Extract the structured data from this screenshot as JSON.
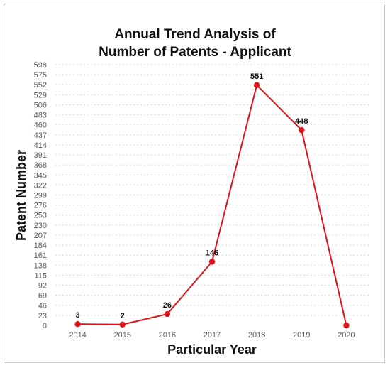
{
  "chart_data": {
    "type": "line",
    "title_line1": "Annual Trend Analysis of",
    "title_line2": "Number of Patents - Applicant",
    "xlabel": "Particular Year",
    "ylabel": "Patent Number",
    "categories": [
      "2014",
      "2015",
      "2016",
      "2017",
      "2018",
      "2019",
      "2020"
    ],
    "series": [
      {
        "values": [
          3,
          2,
          26,
          146,
          551,
          448,
          0
        ],
        "data_labels": [
          "3",
          "2",
          "26",
          "146",
          "551",
          "448",
          ""
        ]
      }
    ],
    "y_ticks": [
      0,
      23,
      46,
      69,
      92,
      115,
      138,
      161,
      184,
      207,
      230,
      253,
      276,
      299,
      322,
      345,
      368,
      391,
      414,
      437,
      460,
      483,
      506,
      529,
      552,
      575,
      598
    ],
    "ylim": [
      0,
      598
    ],
    "grid": true,
    "line_color": "#e0131b",
    "marker_color": "#e0131b",
    "grid_color": "#d9d9d9"
  }
}
